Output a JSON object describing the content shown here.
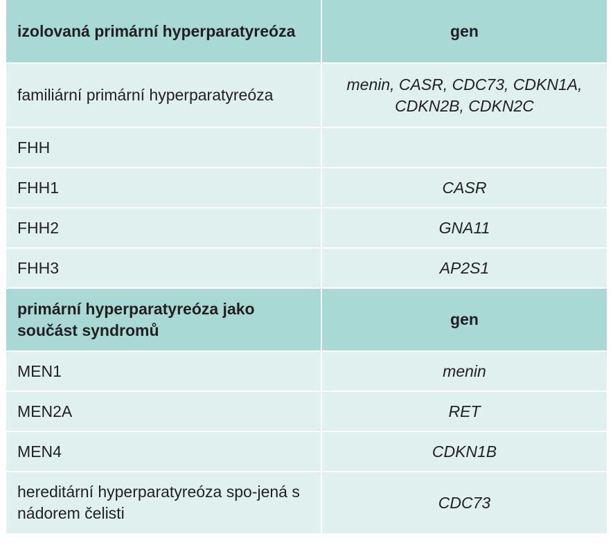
{
  "sections": [
    {
      "header": {
        "label": "izolovaná primární hyperparatyreóza",
        "gene_header": "gen"
      },
      "rows": [
        {
          "condition": "familiární primární hyperparatyreóza",
          "gene": "menin, CASR, CDC73, CDKN1A, CDKN2B, CDKN2C"
        },
        {
          "condition": "FHH",
          "gene": ""
        },
        {
          "condition": "FHH1",
          "gene": "CASR"
        },
        {
          "condition": "FHH2",
          "gene": "GNA11"
        },
        {
          "condition": "FHH3",
          "gene": "AP2S1"
        }
      ]
    },
    {
      "header": {
        "label": "primární hyperparatyreóza jako součást syndromů",
        "gene_header": "gen"
      },
      "rows": [
        {
          "condition": "MEN1",
          "gene": "menin"
        },
        {
          "condition": "MEN2A",
          "gene": "RET"
        },
        {
          "condition": "MEN4",
          "gene": "CDKN1B"
        },
        {
          "condition": "hereditární hyperparatyreóza spo-jená s nádorem čelisti",
          "gene": "CDC73"
        }
      ]
    }
  ],
  "colors": {
    "header_bg": "#a9d9d5",
    "row_bg": "#dff0ee",
    "text": "#231f20"
  }
}
